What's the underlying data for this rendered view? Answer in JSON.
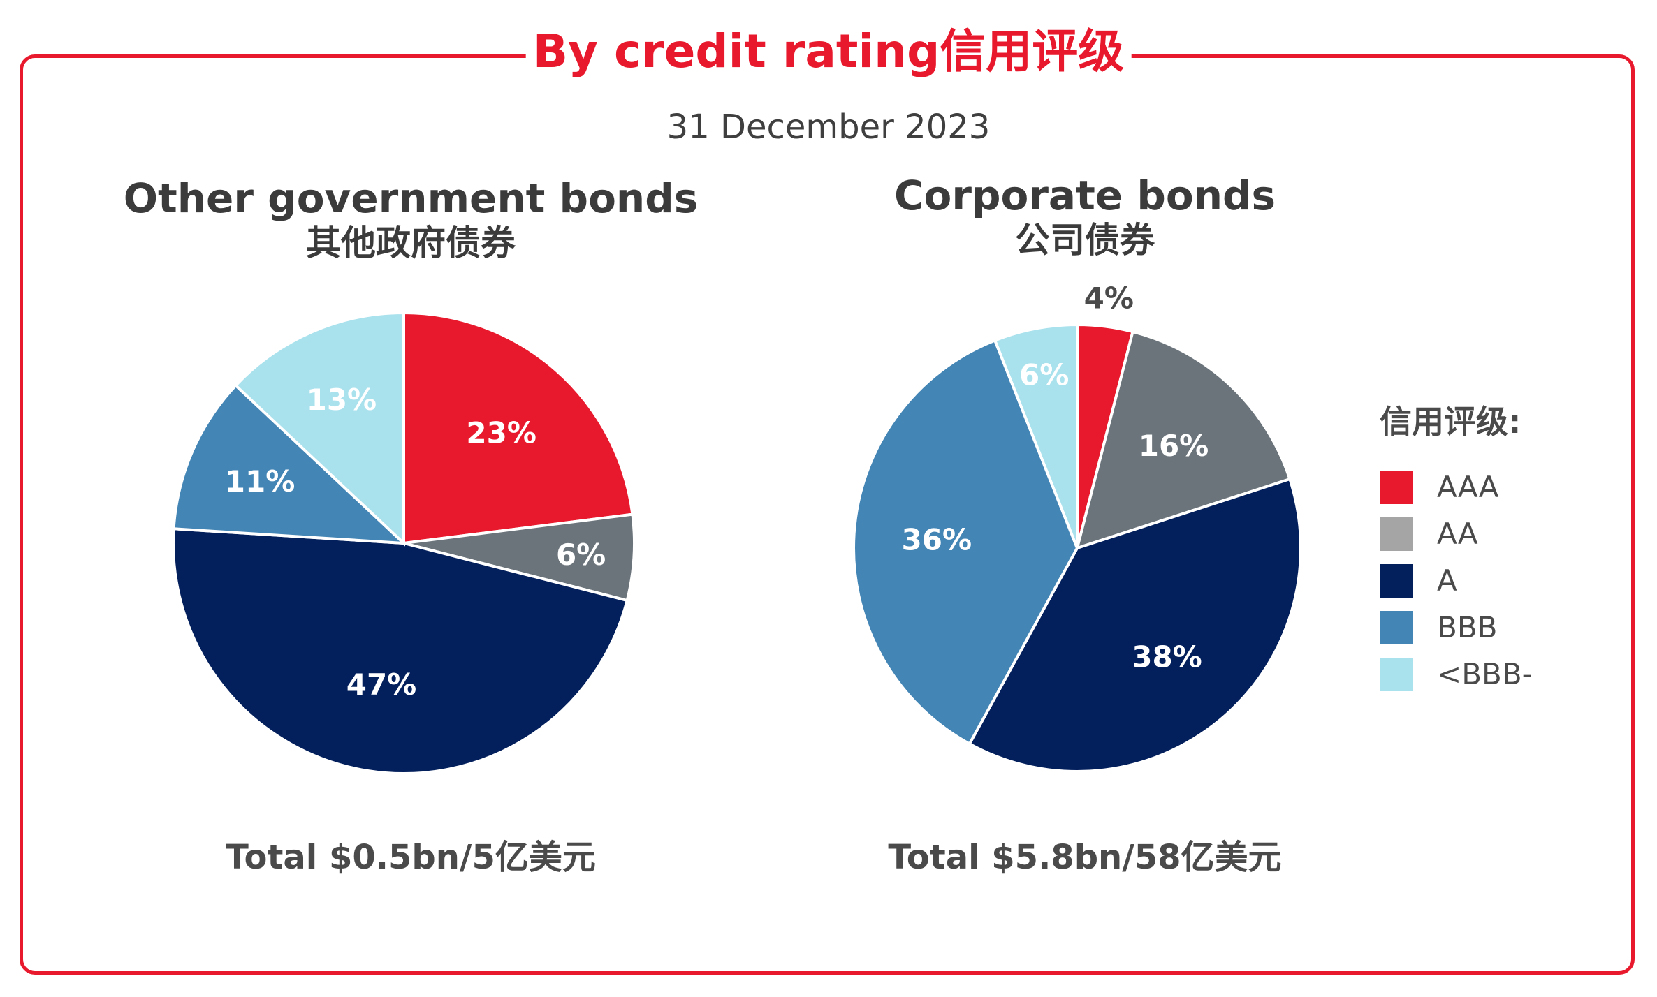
{
  "title": "By credit rating信用评级",
  "date": "31 December 2023",
  "legend": {
    "title": "信用评级:",
    "items": [
      {
        "label": "AAA",
        "color": "#e8192c"
      },
      {
        "label": "AA",
        "color": "#a5a5a5"
      },
      {
        "label": "A",
        "color": "#031f5c"
      },
      {
        "label": "BBB",
        "color": "#4385b5"
      },
      {
        "label": "<BBB-",
        "color": "#a9e1ed"
      }
    ]
  },
  "chart_data": [
    {
      "type": "pie",
      "title": "Other government bonds",
      "subtitle": "其他政府债券",
      "total": "Total $0.5bn/5亿美元",
      "categories": [
        "AAA",
        "AA",
        "A",
        "BBB",
        "<BBB-"
      ],
      "values": [
        23,
        6,
        47,
        11,
        13
      ],
      "labels": [
        "23%",
        "6%",
        "47%",
        "11%",
        "13%"
      ],
      "colors": [
        "#e8192c",
        "#6b747b",
        "#031f5c",
        "#4385b5",
        "#a9e1ed"
      ]
    },
    {
      "type": "pie",
      "title": "Corporate bonds",
      "subtitle": "公司债券",
      "total": "Total $5.8bn/58亿美元",
      "categories": [
        "AAA",
        "AA",
        "A",
        "BBB",
        "<BBB-"
      ],
      "values": [
        4,
        16,
        38,
        36,
        6
      ],
      "labels": [
        "4%",
        "16%",
        "38%",
        "36%",
        "6%"
      ],
      "colors": [
        "#e8192c",
        "#6b747b",
        "#031f5c",
        "#4385b5",
        "#a9e1ed"
      ]
    }
  ]
}
